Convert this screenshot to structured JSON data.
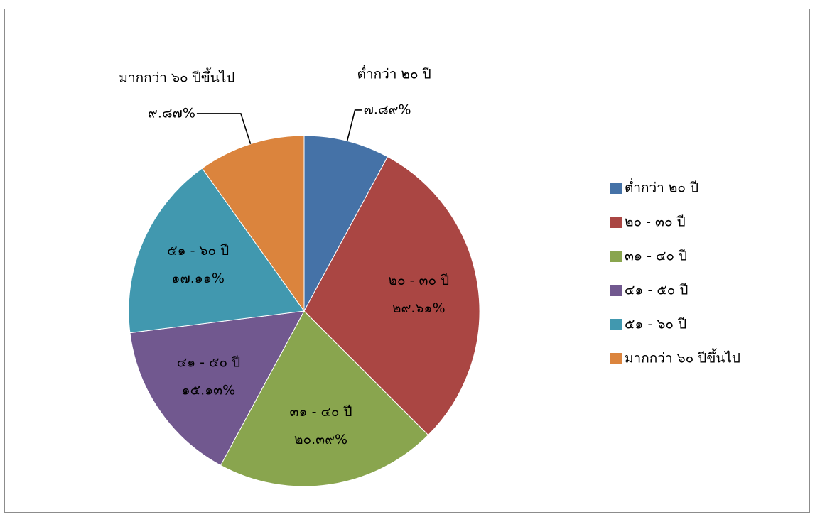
{
  "chart_data": {
    "type": "pie",
    "title": "",
    "legend_position": "right",
    "slices": [
      {
        "label": "ต่ำกว่า ๒๐ ปี",
        "value": 7.89,
        "value_label": "๗.๘๙%",
        "color": "#4572a7"
      },
      {
        "label": "๒๐ - ๓๐ ปี",
        "value": 29.61,
        "value_label": "๒๙.๖๑%",
        "color": "#aa4643"
      },
      {
        "label": "๓๑ - ๔๐ ปี",
        "value": 20.39,
        "value_label": "๒๐.๓๙%",
        "color": "#89a54e"
      },
      {
        "label": "๔๑ - ๕๐ ปี",
        "value": 15.13,
        "value_label": "๑๕.๑๓%",
        "color": "#71588f"
      },
      {
        "label": "๕๑ - ๖๐ ปี",
        "value": 17.11,
        "value_label": "๑๗.๑๑%",
        "color": "#4198af"
      },
      {
        "label": "มากกว่า ๖๐ ปีขึ้นไป",
        "value": 9.87,
        "value_label": "๙.๘๗%",
        "color": "#db843d"
      }
    ]
  }
}
